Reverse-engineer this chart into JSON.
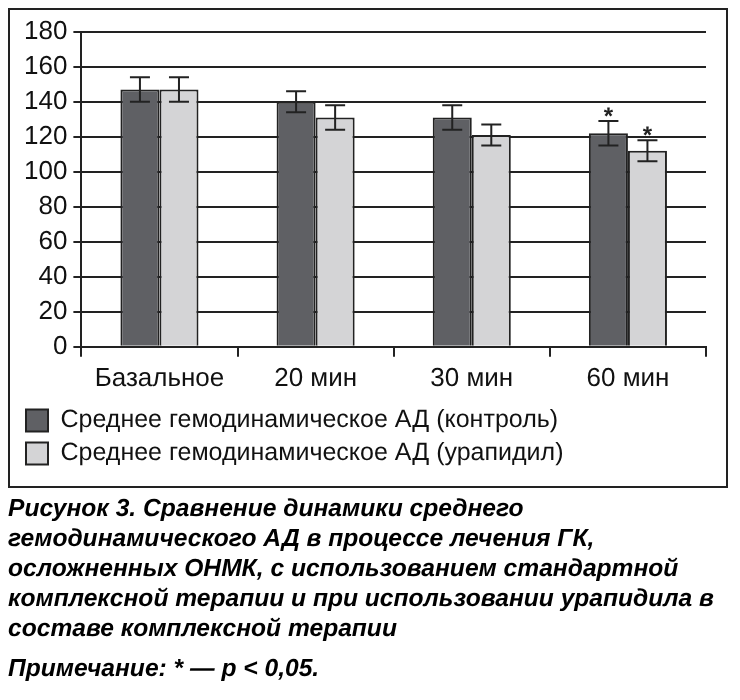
{
  "chart_data": {
    "type": "bar",
    "title": "Рисунок 3. Сравнение динамики среднего гемодинамического АД в процессе лечения ГК, осложненных ОНМК, с использованием стандартной комплексной терапии и при использовании урапидила в составе комплексной терапии",
    "categories": [
      "Базальное",
      "20 мин",
      "30 мин",
      "60 мин"
    ],
    "series": [
      {
        "name": "Среднее гемодинамическое АД (контроль)",
        "color": "#5f6064",
        "values": [
          147,
          140,
          131,
          122
        ],
        "errors": [
          7,
          6,
          7,
          7
        ]
      },
      {
        "name": "Среднее гемодинамическое АД (урапидил)",
        "color": "#d4d4d6",
        "values": [
          147,
          131,
          121,
          112
        ],
        "errors": [
          7,
          7,
          6,
          6
        ]
      }
    ],
    "ylim": [
      0,
      180
    ],
    "yticks": [
      0,
      20,
      40,
      60,
      80,
      100,
      120,
      140,
      160,
      180
    ],
    "grid": "y",
    "legend": "bottom",
    "annotations": [
      {
        "text": "*",
        "x": "60 мин",
        "y": 122
      },
      {
        "text": "*",
        "x": "60 мин",
        "y": 112
      },
      "Примечание: * — p < 0,05."
    ]
  }
}
